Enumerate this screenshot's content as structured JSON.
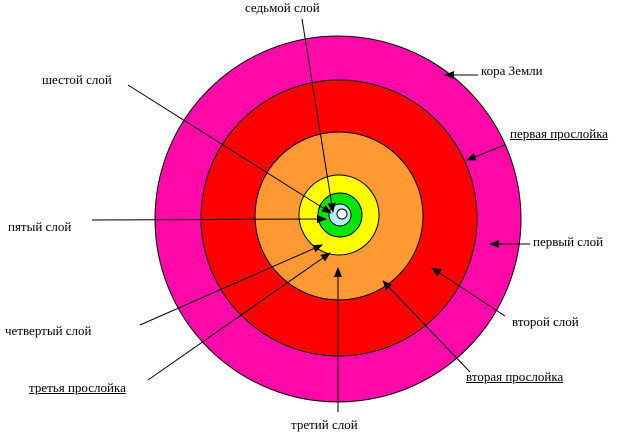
{
  "layers": [
    {
      "name": "crust",
      "color": "#ff0aa8"
    },
    {
      "name": "first-interlayer",
      "color": "#ff0000"
    },
    {
      "name": "orange",
      "color": "#ff9933"
    },
    {
      "name": "yellow",
      "color": "#ffff00"
    },
    {
      "name": "green",
      "color": "#00e600"
    },
    {
      "name": "lightblue",
      "color": "#b0f0ff"
    },
    {
      "name": "core",
      "color": "#ffffff"
    }
  ],
  "labels": {
    "seventh": "седьмой слой",
    "sixth": "шестой слой",
    "fifth": "пятый слой",
    "fourth": "четвертый слой",
    "third_interlayer": "третья прослойка",
    "third": "третий слой",
    "second_interlayer": "вторая прослойка",
    "second": "второй слой",
    "first": "первый слой",
    "first_interlayer": "первая прослойка",
    "crust": "кора Земли"
  }
}
